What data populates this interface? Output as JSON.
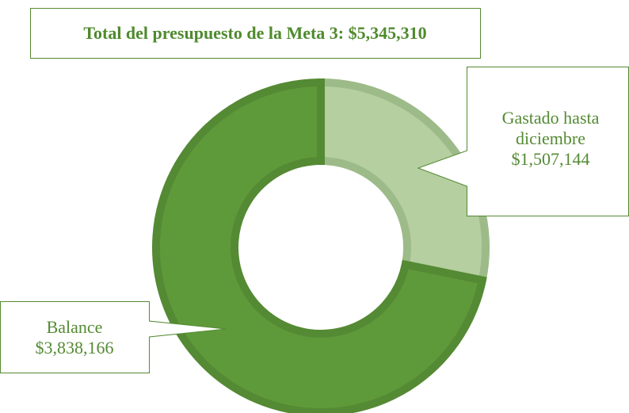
{
  "chart_data": {
    "type": "donut",
    "title": "Total del presupuesto de la Meta 3: $5,345,310",
    "categories": [
      "Gastado hasta diciembre",
      "Balance"
    ],
    "values": [
      1507144,
      3838166
    ],
    "value_labels": [
      "$1,507,144",
      "$3,838,166"
    ],
    "colors": [
      "#b5cfa0",
      "#5f9a3a"
    ]
  }
}
